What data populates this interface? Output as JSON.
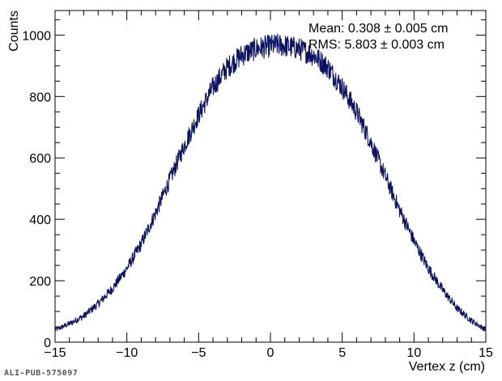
{
  "figure_id": "ALI-PUB-575097",
  "chart_data": {
    "type": "line",
    "title": "",
    "xlabel": "Vertex z (cm)",
    "ylabel": "Counts",
    "xlim": [
      -15,
      15
    ],
    "ylim": [
      0,
      1080
    ],
    "xticks": [
      -15,
      -10,
      -5,
      0,
      5,
      10,
      15
    ],
    "yticks": [
      0,
      200,
      400,
      600,
      800,
      1000
    ],
    "grid": false,
    "line_color": "#0c1260",
    "annotations": {
      "mean": "Mean: 0.308 ± 0.005 cm",
      "rms": "RMS: 5.803 ± 0.003 cm"
    },
    "series": [
      {
        "x": [
          -15,
          -14,
          -13,
          -12,
          -11,
          -10,
          -9,
          -8,
          -7,
          -6,
          -5,
          -4,
          -3,
          -2,
          -1,
          0,
          0.5,
          1,
          2,
          3,
          4,
          5,
          6,
          7,
          8,
          9,
          10,
          11,
          12,
          13,
          14,
          15
        ],
        "values": [
          40,
          60,
          85,
          125,
          175,
          240,
          320,
          420,
          530,
          640,
          740,
          830,
          895,
          935,
          955,
          965,
          968,
          965,
          955,
          935,
          895,
          830,
          750,
          650,
          540,
          430,
          330,
          240,
          170,
          110,
          70,
          40
        ]
      }
    ]
  }
}
